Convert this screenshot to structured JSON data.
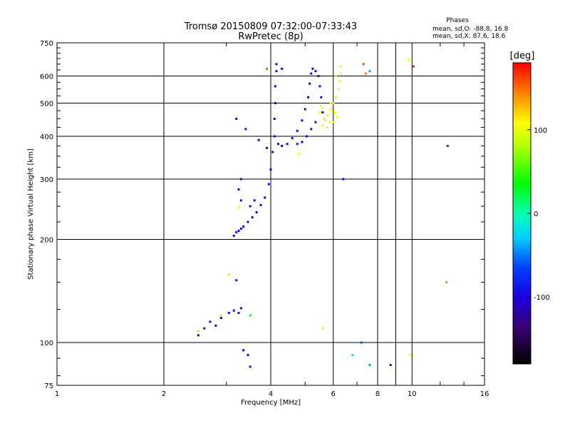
{
  "title": "Tromsø 20150809 07:32:00-07:33:43",
  "subtitle": "RwPretec (8p)",
  "phases": {
    "heading": "Phases",
    "line1": "mean, sd,O: -88.8, 16.8",
    "line2": "mean, sd,X:  87.6, 18.6"
  },
  "colors": {
    "grid": "#000000",
    "frame": "#000000",
    "background": "#ffffff"
  },
  "chart_data": {
    "type": "scatter",
    "title": "Tromsø 20150809 07:32:00-07:33:43",
    "subtitle": "RwPretec (8p)",
    "xlabel": "Frequency [MHz]",
    "ylabel": "Stationary phase Virtual Height [km]",
    "x_scale": "log",
    "y_scale": "log",
    "xlim": [
      1,
      16
    ],
    "ylim": [
      75,
      750
    ],
    "grid": true,
    "x_ticks": [
      1,
      2,
      4,
      6,
      8,
      10,
      16
    ],
    "y_ticks": [
      75,
      100,
      200,
      300,
      400,
      500,
      600,
      750
    ],
    "colorbar": {
      "label": "[deg]",
      "range": [
        -180,
        180
      ],
      "ticks": [
        100,
        0,
        -100
      ]
    },
    "series": [
      {
        "role": "O-mode",
        "points": [
          [
            3.15,
            205,
            -100
          ],
          [
            3.2,
            210,
            -102
          ],
          [
            3.25,
            212,
            -98
          ],
          [
            3.3,
            215,
            -100
          ],
          [
            3.35,
            218,
            -95
          ],
          [
            3.45,
            225,
            -100
          ],
          [
            3.55,
            232,
            -105
          ],
          [
            3.65,
            240,
            -100
          ],
          [
            3.75,
            252,
            -98
          ],
          [
            3.85,
            265,
            -100
          ],
          [
            3.95,
            290,
            -97
          ],
          [
            4.0,
            320,
            -100
          ],
          [
            4.05,
            360,
            -100
          ],
          [
            4.1,
            400,
            -102
          ],
          [
            4.1,
            450,
            -100
          ],
          [
            4.12,
            500,
            -98
          ],
          [
            4.12,
            560,
            -100
          ],
          [
            4.15,
            620,
            -105
          ],
          [
            4.15,
            650,
            -100
          ],
          [
            4.2,
            380,
            -100
          ],
          [
            4.3,
            375,
            -98
          ],
          [
            4.45,
            380,
            -100
          ],
          [
            4.6,
            395,
            -102
          ],
          [
            4.75,
            415,
            -100
          ],
          [
            4.9,
            445,
            -98
          ],
          [
            5.0,
            480,
            -100
          ],
          [
            5.1,
            520,
            -102
          ],
          [
            5.15,
            570,
            -100
          ],
          [
            5.2,
            610,
            -98
          ],
          [
            5.25,
            630,
            -100
          ],
          [
            5.35,
            620,
            -100
          ],
          [
            5.45,
            600,
            -102
          ],
          [
            5.5,
            560,
            -100
          ],
          [
            5.55,
            520,
            -98
          ],
          [
            5.6,
            470,
            -100
          ],
          [
            5.35,
            440,
            -100
          ],
          [
            5.2,
            420,
            -98
          ],
          [
            5.05,
            400,
            -100
          ],
          [
            4.9,
            385,
            -102
          ],
          [
            4.75,
            380,
            -100
          ],
          [
            3.3,
            300,
            -100
          ],
          [
            3.25,
            280,
            -98
          ],
          [
            3.3,
            260,
            -100
          ],
          [
            3.5,
            250,
            -100
          ],
          [
            3.6,
            260,
            -102
          ],
          [
            3.2,
            450,
            -100
          ],
          [
            3.4,
            420,
            -98
          ],
          [
            3.7,
            390,
            -100
          ],
          [
            3.9,
            370,
            -100
          ],
          [
            6.4,
            300,
            -95
          ],
          [
            2.5,
            105,
            -100
          ],
          [
            2.6,
            110,
            -102
          ],
          [
            2.7,
            115,
            -100
          ],
          [
            2.8,
            112,
            -98
          ],
          [
            2.9,
            118,
            -100
          ],
          [
            3.05,
            122,
            -100
          ],
          [
            3.15,
            124,
            -98
          ],
          [
            3.25,
            122,
            -100
          ],
          [
            3.3,
            126,
            -102
          ],
          [
            3.35,
            95,
            -100
          ],
          [
            3.45,
            92,
            -100
          ],
          [
            3.5,
            85,
            -98
          ],
          [
            3.2,
            152,
            -95
          ],
          [
            8.7,
            86,
            -110
          ],
          [
            4.3,
            630,
            -100
          ]
        ]
      },
      {
        "role": "X-mode",
        "points": [
          [
            5.6,
            430,
            100
          ],
          [
            5.7,
            445,
            98
          ],
          [
            5.8,
            460,
            100
          ],
          [
            5.9,
            480,
            102
          ],
          [
            6.0,
            500,
            100
          ],
          [
            6.1,
            520,
            98
          ],
          [
            6.2,
            550,
            100
          ],
          [
            6.25,
            580,
            102
          ],
          [
            6.3,
            610,
            100
          ],
          [
            6.3,
            640,
            98
          ],
          [
            5.85,
            440,
            100
          ],
          [
            6.05,
            470,
            102
          ],
          [
            6.15,
            455,
            100
          ],
          [
            6.0,
            440,
            98
          ],
          [
            5.75,
            425,
            100
          ],
          [
            5.65,
            450,
            102
          ],
          [
            5.9,
            500,
            100
          ],
          [
            6.1,
            600,
            98
          ],
          [
            5.5,
            470,
            100
          ],
          [
            5.55,
            490,
            102
          ],
          [
            3.05,
            158,
            95
          ],
          [
            2.9,
            120,
            85
          ],
          [
            2.5,
            108,
            80
          ],
          [
            5.6,
            110,
            100
          ],
          [
            4.8,
            355,
            110
          ],
          [
            9.9,
            92,
            95
          ],
          [
            9.8,
            670,
            110
          ]
        ]
      },
      {
        "role": "other",
        "points": [
          [
            3.9,
            630,
            155
          ],
          [
            7.3,
            650,
            160
          ],
          [
            7.4,
            610,
            150
          ],
          [
            10.1,
            640,
            170
          ],
          [
            12.5,
            150,
            140
          ],
          [
            12.6,
            375,
            -70
          ],
          [
            7.6,
            620,
            -40
          ],
          [
            6.8,
            92,
            -20
          ],
          [
            7.6,
            86,
            -40
          ],
          [
            7.2,
            100,
            -60
          ],
          [
            3.5,
            120,
            30
          ],
          [
            3.25,
            248,
            110
          ]
        ]
      }
    ]
  }
}
